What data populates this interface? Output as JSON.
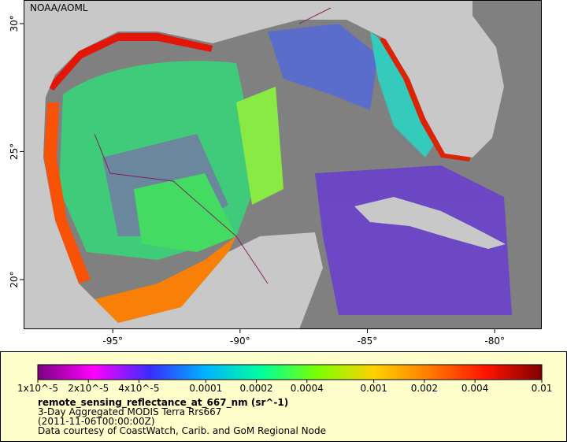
{
  "map": {
    "type": "map",
    "credit": "NOAA/AOML",
    "xlim": [
      -98.5,
      -78.15
    ],
    "ylim": [
      18.06,
      30.92
    ],
    "xticks": [
      {
        "value": -95,
        "label": "-95°"
      },
      {
        "value": -90,
        "label": "-90°"
      },
      {
        "value": -85,
        "label": "-85°"
      },
      {
        "value": -80,
        "label": "-80°"
      }
    ],
    "yticks": [
      {
        "value": 20,
        "label": "20°"
      },
      {
        "value": 25,
        "label": "25°"
      },
      {
        "value": 30,
        "label": "30°"
      }
    ]
  },
  "legend": {
    "colorbar": {
      "scale": "log",
      "lim": [
        1e-05,
        0.01
      ],
      "colors": [
        "#7a0080",
        "#ff00ff",
        "#3a2cff",
        "#00b4ff",
        "#00ff9c",
        "#7cff00",
        "#ffd200",
        "#ff7a00",
        "#ff1400",
        "#800000"
      ],
      "ticks": [
        {
          "value": 1e-05,
          "label": "1x10^-5"
        },
        {
          "value": 2e-05,
          "label": "2x10^-5"
        },
        {
          "value": 4e-05,
          "label": "4x10^-5"
        },
        0.0001,
        0.0002,
        0.0004,
        0.001,
        0.002,
        0.004,
        0.01
      ]
    },
    "variable": "remote_sensing_reflectance_at_667_nm (sr^-1)",
    "lines": [
      "3-Day Aggregated MODIS Terra Rrs667",
      "(2011-11-06T00:00:00Z)",
      "Data courtesy of CoastWatch, Carib. and GoM Regional Node"
    ]
  }
}
